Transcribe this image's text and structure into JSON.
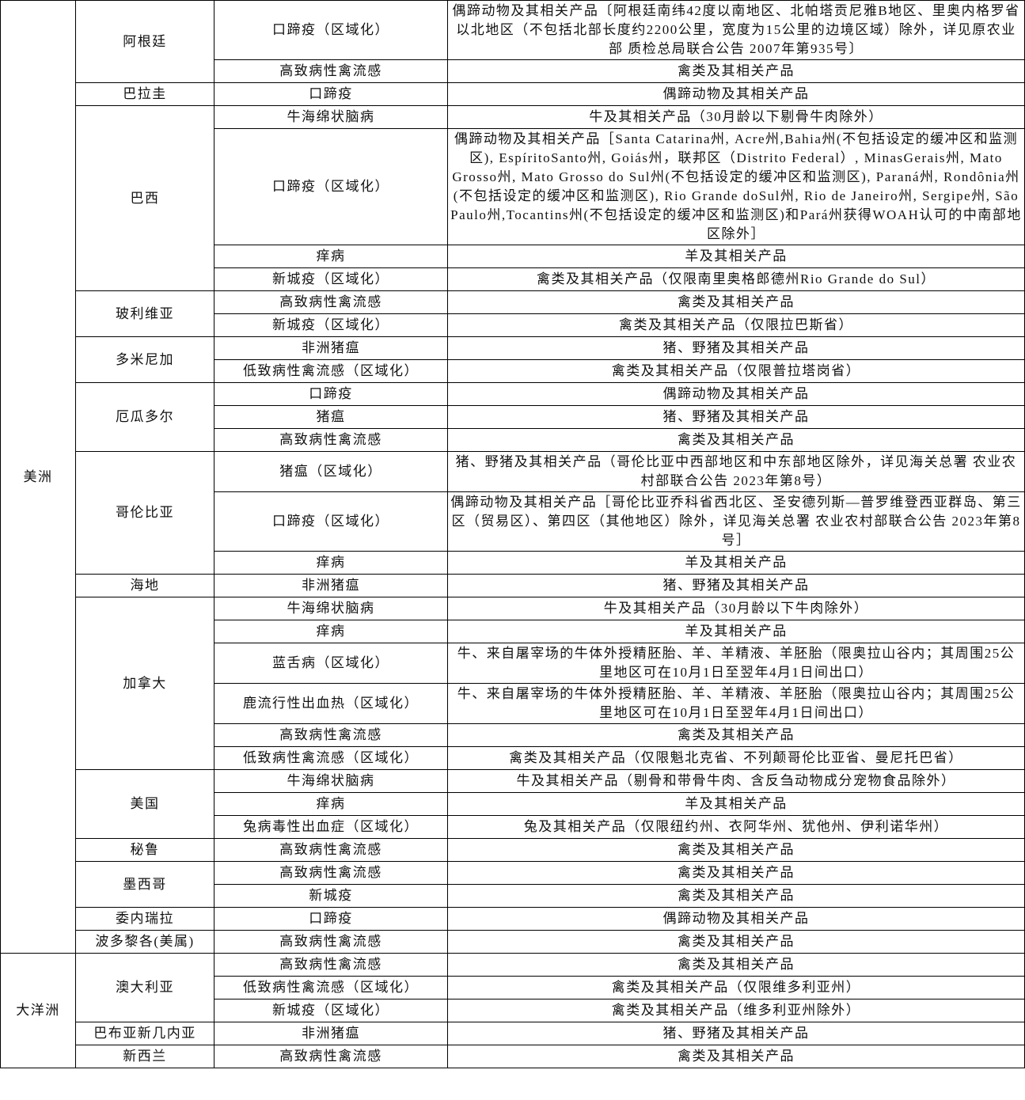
{
  "regions": [
    {
      "name": "美洲",
      "countries": [
        {
          "name": "阿根廷",
          "rows": [
            {
              "disease": "口蹄疫（区域化）",
              "product": "偶蹄动物及其相关产品〔阿根廷南纬42度以南地区、北帕塔贡尼雅B地区、里奥内格罗省以北地区（不包括北部长度约2200公里，宽度为15公里的边境区域）除外，详见原农业部 质检总局联合公告 2007年第935号〕"
            },
            {
              "disease": "高致病性禽流感",
              "product": "禽类及其相关产品"
            }
          ]
        },
        {
          "name": "巴拉圭",
          "rows": [
            {
              "disease": "口蹄疫",
              "product": "偶蹄动物及其相关产品"
            }
          ]
        },
        {
          "name": "巴西",
          "rows": [
            {
              "disease": "牛海绵状脑病",
              "product": "牛及其相关产品（30月龄以下剔骨牛肉除外）"
            },
            {
              "disease": "口蹄疫（区域化）",
              "product": "偶蹄动物及其相关产品［Santa Catarina州, Acre州,Bahia州(不包括设定的缓冲区和监测区), EspíritoSanto州, Goiás州，联邦区（Distrito Federal）, MinasGerais州, Mato Grosso州, Mato Grosso do Sul州(不包括设定的缓冲区和监测区), Paraná州, Rondônia州(不包括设定的缓冲区和监测区), Rio Grande doSul州, Rio de Janeiro州, Sergipe州, São Paulo州,Tocantins州(不包括设定的缓冲区和监测区)和Pará州获得WOAH认可的中南部地区除外］"
            },
            {
              "disease": "痒病",
              "product": "羊及其相关产品"
            },
            {
              "disease": "新城疫（区域化）",
              "product": "禽类及其相关产品（仅限南里奥格郎德州Rio Grande do Sul）"
            }
          ]
        },
        {
          "name": "玻利维亚",
          "rows": [
            {
              "disease": "高致病性禽流感",
              "product": "禽类及其相关产品"
            },
            {
              "disease": "新城疫（区域化）",
              "product": "禽类及其相关产品（仅限拉巴斯省）"
            }
          ]
        },
        {
          "name": "多米尼加",
          "rows": [
            {
              "disease": "非洲猪瘟",
              "product": "猪、野猪及其相关产品"
            },
            {
              "disease": "低致病性禽流感（区域化）",
              "product": "禽类及其相关产品（仅限普拉塔岗省）"
            }
          ]
        },
        {
          "name": "厄瓜多尔",
          "rows": [
            {
              "disease": "口蹄疫",
              "product": "偶蹄动物及其相关产品"
            },
            {
              "disease": "猪瘟",
              "product": "猪、野猪及其相关产品"
            },
            {
              "disease": "高致病性禽流感",
              "product": "禽类及其相关产品"
            }
          ]
        },
        {
          "name": "哥伦比亚",
          "rows": [
            {
              "disease": "猪瘟（区域化）",
              "product": "猪、野猪及其相关产品（哥伦比亚中西部地区和中东部地区除外，详见海关总署 农业农村部联合公告 2023年第8号）"
            },
            {
              "disease": "口蹄疫（区域化）",
              "product": "偶蹄动物及其相关产品［哥伦比亚乔科省西北区、圣安德列斯—普罗维登西亚群岛、第三区（贸易区）、第四区（其他地区）除外，详见海关总署 农业农村部联合公告 2023年第8号］"
            },
            {
              "disease": "痒病",
              "product": "羊及其相关产品"
            }
          ]
        },
        {
          "name": "海地",
          "rows": [
            {
              "disease": "非洲猪瘟",
              "product": "猪、野猪及其相关产品"
            }
          ]
        },
        {
          "name": "加拿大",
          "rows": [
            {
              "disease": "牛海绵状脑病",
              "product": "牛及其相关产品（30月龄以下牛肉除外）"
            },
            {
              "disease": "痒病",
              "product": "羊及其相关产品"
            },
            {
              "disease": "蓝舌病（区域化）",
              "product": "牛、来自屠宰场的牛体外授精胚胎、羊、羊精液、羊胚胎（限奥拉山谷内；其周围25公里地区可在10月1日至翌年4月1日间出口）"
            },
            {
              "disease": "鹿流行性出血热（区域化）",
              "product": "牛、来自屠宰场的牛体外授精胚胎、羊、羊精液、羊胚胎（限奥拉山谷内；其周围25公里地区可在10月1日至翌年4月1日间出口）"
            },
            {
              "disease": "高致病性禽流感",
              "product": "禽类及其相关产品"
            },
            {
              "disease": "低致病性禽流感（区域化）",
              "product": "禽类及其相关产品（仅限魁北克省、不列颠哥伦比亚省、曼尼托巴省）"
            }
          ]
        },
        {
          "name": "美国",
          "rows": [
            {
              "disease": "牛海绵状脑病",
              "product": "牛及其相关产品（剔骨和带骨牛肉、含反刍动物成分宠物食品除外）"
            },
            {
              "disease": "痒病",
              "product": "羊及其相关产品"
            },
            {
              "disease": "兔病毒性出血症（区域化）",
              "product": "兔及其相关产品（仅限纽约州、衣阿华州、犹他州、伊利诺华州）"
            }
          ]
        },
        {
          "name": "秘鲁",
          "rows": [
            {
              "disease": "高致病性禽流感",
              "product": "禽类及其相关产品"
            }
          ]
        },
        {
          "name": "墨西哥",
          "rows": [
            {
              "disease": "高致病性禽流感",
              "product": "禽类及其相关产品"
            },
            {
              "disease": "新城疫",
              "product": "禽类及其相关产品"
            }
          ]
        },
        {
          "name": "委内瑞拉",
          "rows": [
            {
              "disease": "口蹄疫",
              "product": "偶蹄动物及其相关产品"
            }
          ]
        },
        {
          "name": "波多黎各(美属)",
          "rows": [
            {
              "disease": "高致病性禽流感",
              "product": "禽类及其相关产品"
            }
          ]
        }
      ]
    },
    {
      "name": "大洋洲",
      "countries": [
        {
          "name": "澳大利亚",
          "rows": [
            {
              "disease": "高致病性禽流感",
              "product": "禽类及其相关产品"
            },
            {
              "disease": "低致病性禽流感（区域化）",
              "product": "禽类及其相关产品（仅限维多利亚州）"
            },
            {
              "disease": "新城疫（区域化）",
              "product": "禽类及其相关产品（维多利亚州除外）"
            }
          ]
        },
        {
          "name": "巴布亚新几内亚",
          "rows": [
            {
              "disease": "非洲猪瘟",
              "product": "猪、野猪及其相关产品"
            }
          ]
        },
        {
          "name": "新西兰",
          "rows": [
            {
              "disease": "高致病性禽流感",
              "product": "禽类及其相关产品"
            }
          ]
        }
      ]
    }
  ]
}
